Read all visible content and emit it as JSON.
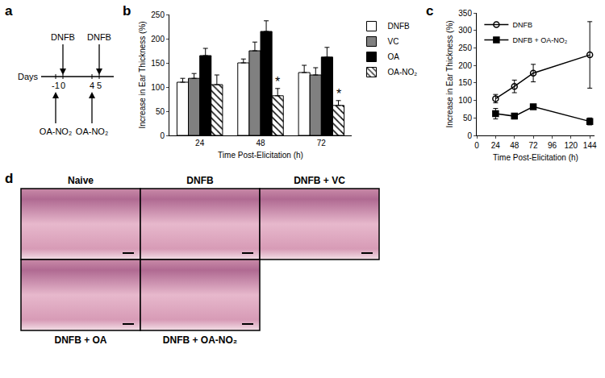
{
  "chart_data": [
    {
      "panel": "b",
      "type": "bar",
      "categories": [
        "24",
        "48",
        "72"
      ],
      "x_label": "Time Post-Elicitation (h)",
      "y_label": "Increase in Ear Thickness (%)",
      "ylim": [
        0,
        250
      ],
      "yticks": [
        0,
        50,
        100,
        150,
        200,
        250
      ],
      "grid": false,
      "legend": "right",
      "series": [
        {
          "name": "DNFB",
          "color": "#ffffff",
          "values": [
            110,
            150,
            130
          ],
          "errors": [
            8,
            8,
            15
          ]
        },
        {
          "name": "VC",
          "color": "#808080",
          "values": [
            118,
            175,
            125
          ],
          "errors": [
            10,
            18,
            15
          ]
        },
        {
          "name": "OA",
          "color": "#000000",
          "values": [
            165,
            215,
            162
          ],
          "errors": [
            15,
            22,
            20
          ]
        },
        {
          "name": "OA-NO₂",
          "color": "#ffffff",
          "marker": "hatch",
          "values": [
            105,
            82,
            62
          ],
          "errors": [
            20,
            15,
            10
          ]
        }
      ],
      "annotations": [
        {
          "category": "48",
          "series": "OA-NO₂",
          "text": "*"
        },
        {
          "category": "72",
          "series": "OA-NO₂",
          "text": "*"
        }
      ]
    },
    {
      "panel": "c",
      "type": "line",
      "x": [
        24,
        48,
        72,
        144
      ],
      "x_label": "Time Post-Elicitation (h)",
      "y_label": "Increase in Ear Thickness (%)",
      "xlim": [
        0,
        150
      ],
      "xticks": [
        0,
        24,
        48,
        72,
        96,
        120,
        144
      ],
      "ylim": [
        0,
        350
      ],
      "yticks": [
        0,
        50,
        100,
        150,
        200,
        250,
        300,
        350
      ],
      "grid": false,
      "legend": "top-left",
      "series": [
        {
          "name": "DNFB",
          "color": "#000000",
          "marker": "circle-open",
          "values": [
            105,
            140,
            178,
            230
          ],
          "errors": [
            12,
            18,
            25,
            95
          ]
        },
        {
          "name": "DNFB + OA-NO₂",
          "color": "#000000",
          "marker": "square",
          "values": [
            62,
            55,
            82,
            40
          ],
          "errors": [
            15,
            8,
            5,
            10
          ]
        }
      ]
    }
  ],
  "diagram": {
    "panel": "a",
    "axis_label": "Days",
    "days": [
      -1,
      0,
      4,
      5
    ],
    "above": {
      "text": "DNFB",
      "days": [
        0,
        5
      ]
    },
    "below": {
      "text": "OA-NO₂",
      "days": [
        -1,
        4
      ]
    }
  },
  "micrographs": {
    "panel": "d",
    "top_row": [
      "Naive",
      "DNFB",
      "DNFB + VC"
    ],
    "bottom_row": [
      "DNFB + OA",
      "DNFB + OA-NO₂"
    ]
  }
}
